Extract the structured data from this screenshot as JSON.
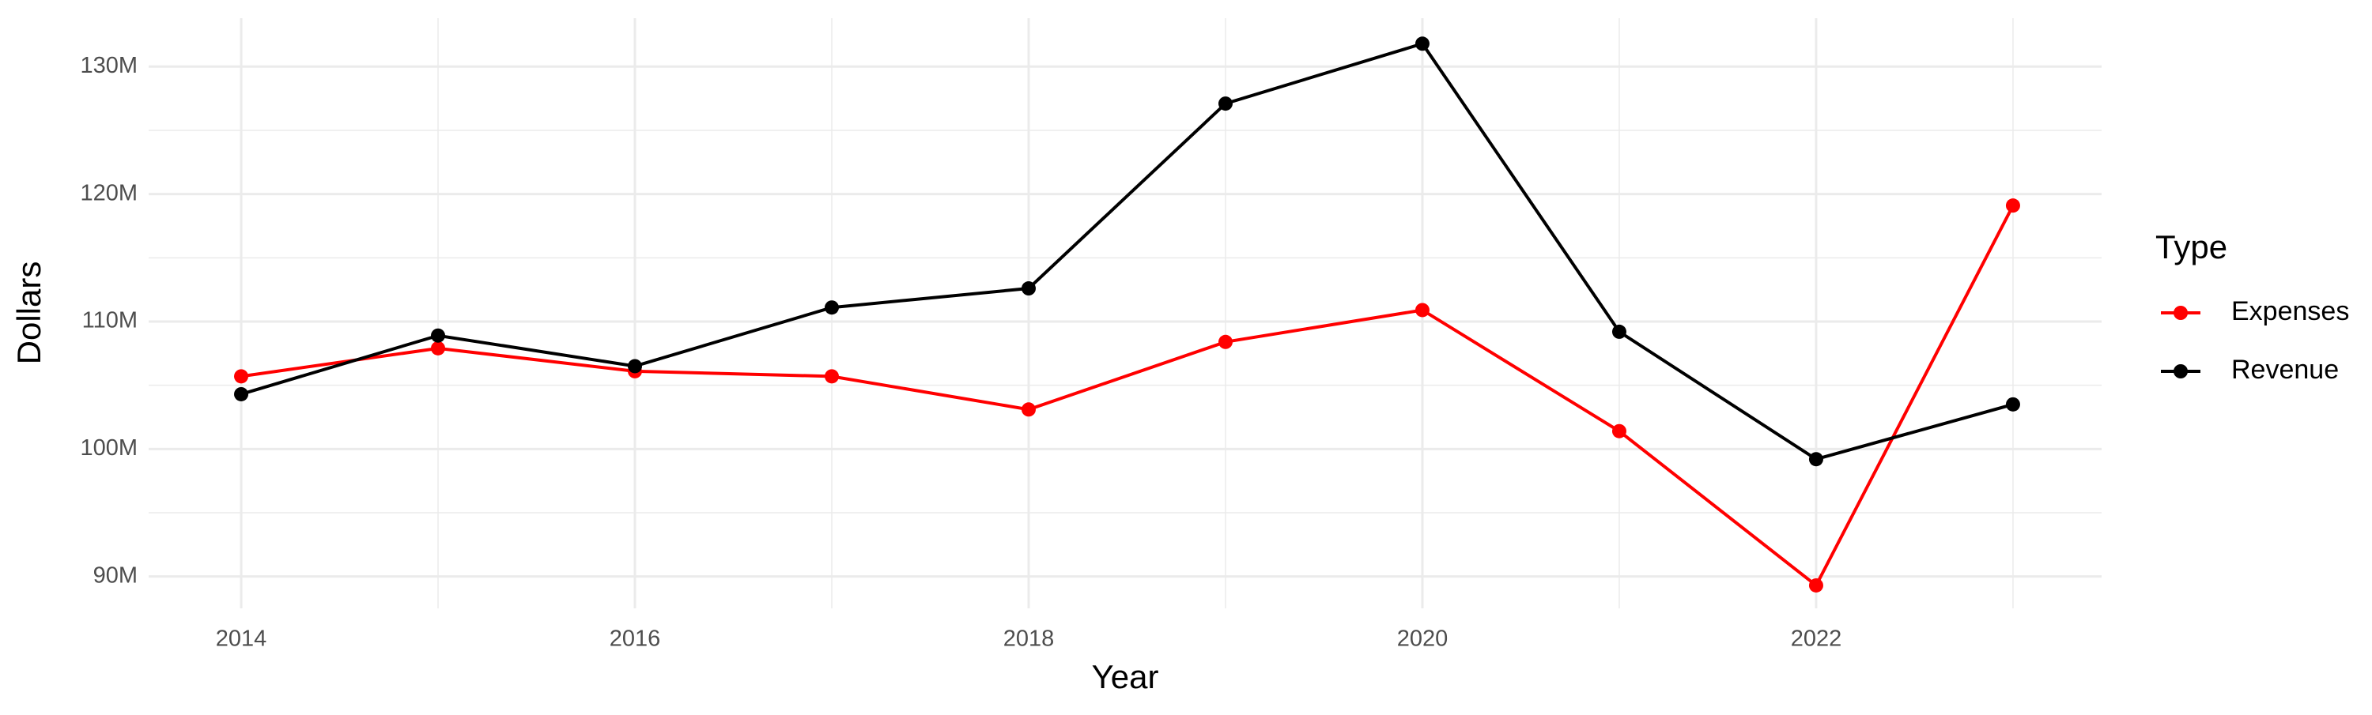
{
  "chart_data": {
    "type": "line",
    "x_label": "Year",
    "y_label": "Dollars",
    "x": [
      2014,
      2015,
      2016,
      2017,
      2018,
      2019,
      2020,
      2021,
      2022,
      2023
    ],
    "series": [
      {
        "name": "Expenses",
        "color": "#ff0000",
        "values": [
          105700000,
          107900000,
          106100000,
          105700000,
          103100000,
          108400000,
          110900000,
          101400000,
          89300000,
          119100000
        ]
      },
      {
        "name": "Revenue",
        "color": "#000000",
        "values": [
          104300000,
          108900000,
          106500000,
          111100000,
          112600000,
          127100000,
          131800000,
          109200000,
          99200000,
          103500000
        ]
      }
    ],
    "xlim": [
      2013.53,
      2023.45
    ],
    "xticks": [
      2014,
      2016,
      2018,
      2020,
      2022
    ],
    "ylim": [
      87500000,
      133800000
    ],
    "yticks": [
      {
        "value": 90000000,
        "label": "90M"
      },
      {
        "value": 100000000,
        "label": "100M"
      },
      {
        "value": 110000000,
        "label": "110M"
      },
      {
        "value": 120000000,
        "label": "120M"
      },
      {
        "value": 130000000,
        "label": "130M"
      }
    ],
    "grid": true,
    "legend_title": "Type",
    "legend_position": "right"
  }
}
